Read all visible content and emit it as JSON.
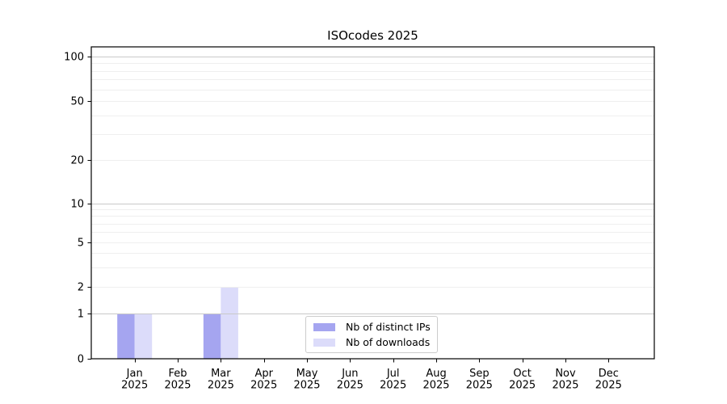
{
  "chart_data": {
    "type": "bar",
    "title": "ISOcodes 2025",
    "categories": [
      "Jan 2025",
      "Feb 2025",
      "Mar 2025",
      "Apr 2025",
      "May 2025",
      "Jun 2025",
      "Jul 2025",
      "Aug 2025",
      "Sep 2025",
      "Oct 2025",
      "Nov 2025",
      "Dec 2025"
    ],
    "series": [
      {
        "name": "Nb of distinct IPs",
        "color": "#a5a5f0",
        "values": [
          1,
          0,
          1,
          0,
          0,
          0,
          0,
          0,
          0,
          0,
          0,
          0
        ]
      },
      {
        "name": "Nb of downloads",
        "color": "#dcdcfa",
        "values": [
          1,
          0,
          2,
          0,
          0,
          0,
          0,
          0,
          0,
          0,
          0,
          0
        ]
      }
    ],
    "xlabel": "",
    "ylabel": "",
    "yscale": "symlog",
    "ylim": [
      0,
      116
    ],
    "y_tick_values": [
      0,
      1,
      2,
      5,
      10,
      20,
      50,
      100
    ],
    "y_major_gridlines": [
      1,
      10,
      100
    ],
    "y_minor_gridlines": [
      3,
      4,
      6,
      7,
      8,
      9,
      30,
      40,
      60,
      70,
      80,
      90
    ],
    "grid": true,
    "legend_position": "bottom-center"
  },
  "colors": {
    "grid_major": "#c9c9c9",
    "grid_minor": "#efefef",
    "axis": "#000000",
    "tick_label": "#000000",
    "background": "#ffffff",
    "legend_border": "#cccccc"
  }
}
